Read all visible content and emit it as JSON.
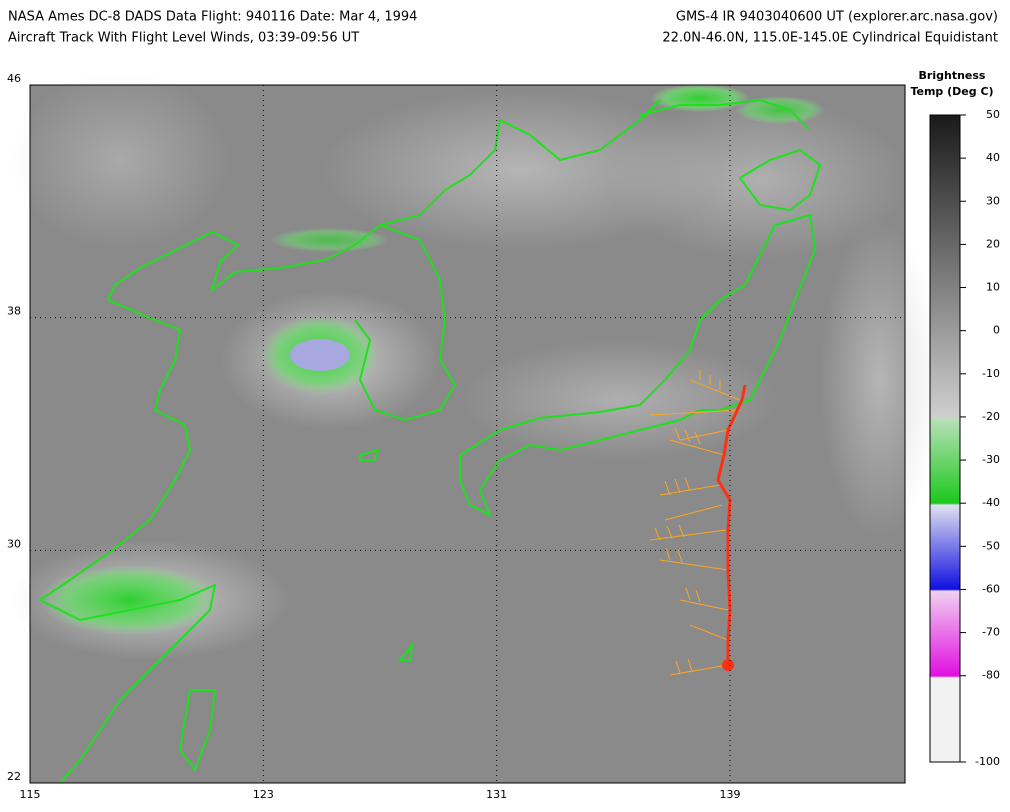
{
  "header": {
    "left_line1": "NASA Ames DC-8 DADS Data  Flight: 940116  Date: Mar 4, 1994",
    "left_line2": "Aircraft Track With Flight Level Winds, 03:39-09:56 UT",
    "right_line1": "GMS-4 IR 9403040600 UT (explorer.arc.nasa.gov)",
    "right_line2": "22.0N-46.0N, 115.0E-145.0E Cylindrical Equidistant"
  },
  "map": {
    "latlim": [
      22,
      46
    ],
    "lonlim": [
      115,
      145
    ],
    "lat_ticks": [
      46,
      38,
      30,
      22
    ],
    "lon_ticks": [
      115,
      123,
      131,
      139
    ]
  },
  "colorbar": {
    "title_line1": "Brightness",
    "title_line2": "Temp (Deg C)",
    "lim": [
      -100,
      50
    ],
    "ticks": [
      50,
      40,
      30,
      20,
      10,
      0,
      -10,
      -20,
      -30,
      -40,
      -50,
      -60,
      -70,
      -80,
      -100
    ]
  }
}
